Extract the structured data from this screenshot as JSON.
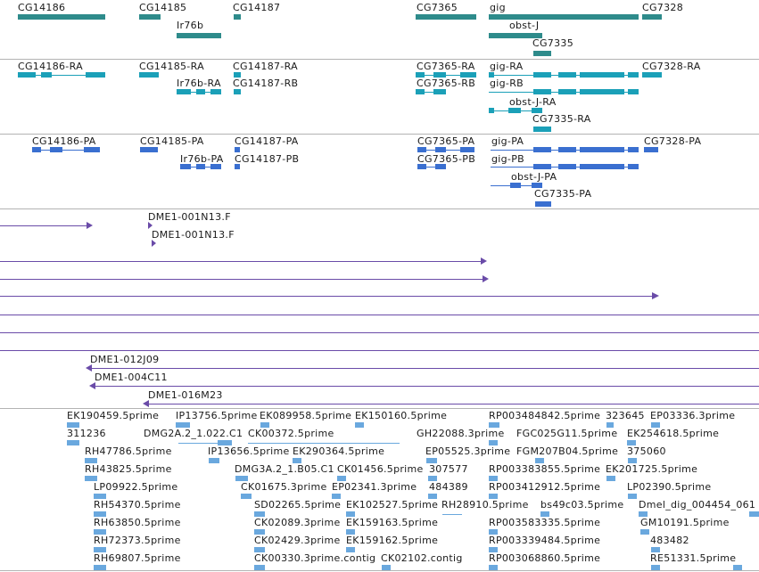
{
  "colors": {
    "gene": "#2e8b8b",
    "transcript": "#1ba0b8",
    "protein": "#3a6fd0",
    "clone": "#6a4ba8",
    "est": "#6aa8de",
    "separator": "#b3b3b3"
  },
  "genes": [
    "CG14186",
    "CG14185",
    "CG14187",
    "CG7365",
    "gig",
    "CG7328",
    "Ir76b",
    "obst-J",
    "CG7335"
  ],
  "transcripts": [
    "CG14186-RA",
    "CG14185-RA",
    "CG14187-RA",
    "CG7365-RA",
    "gig-RA",
    "CG7328-RA",
    "Ir76b-RA",
    "CG14187-RB",
    "CG7365-RB",
    "gig-RB",
    "obst-J-RA",
    "CG7335-RA"
  ],
  "proteins": [
    "CG14186-PA",
    "CG14185-PA",
    "CG14187-PA",
    "CG7365-PA",
    "gig-PA",
    "CG7328-PA",
    "Ir76b-PA",
    "CG14187-PB",
    "CG7365-PB",
    "gig-PB",
    "obst-J-PA",
    "CG7335-PA"
  ],
  "clones": [
    "DME1-001N13.F",
    "DME1-001N13.F",
    "DME1-012J09",
    "DME1-004C11",
    "DME1-016M23"
  ],
  "ests": [
    "EK190459.5prime",
    "IP13756.5prime",
    "EK089958.5prime",
    "EK150160.5prime",
    "RP003484842.5prime",
    "323645",
    "EP03336.3prime",
    "311236",
    "DMG2A.2_1.022.C1",
    "CK00372.5prime",
    "GH22088.3prime",
    "FGC025G11.5prime",
    "EK254618.5prime",
    "RH47786.5prime",
    "IP13656.5prime",
    "EK290364.5prime",
    "EP05525.3prime",
    "FGM207B04.5prime",
    "375060",
    "RH43825.5prime",
    "DMG3A.2_1.B05.C1",
    "CK01456.5prime",
    "307577",
    "RP003383855.5prime",
    "EK201725.5prime",
    "LP09922.5prime",
    "CK01675.3prime",
    "EP02341.3prime",
    "484389",
    "RP003412912.5prime",
    "LP02390.5prime",
    "RH54370.5prime",
    "SD02265.5prime",
    "EK102527.5prime",
    "RH28910.5prime",
    "bs49c03.5prime",
    "Dmel_dig_004454_061",
    "RH63850.5prime",
    "CK02089.3prime",
    "EK159163.5prime",
    "RP003583335.5prime",
    "GM10191.5prime",
    "RH72373.5prime",
    "CK02429.3prime",
    "EK159162.5prime",
    "RP003339484.5prime",
    "483482",
    "RH69807.5prime",
    "CK00330.3prime.contig",
    "CK02102.contig",
    "RP003068860.5prime",
    "RE51331.5prime"
  ]
}
